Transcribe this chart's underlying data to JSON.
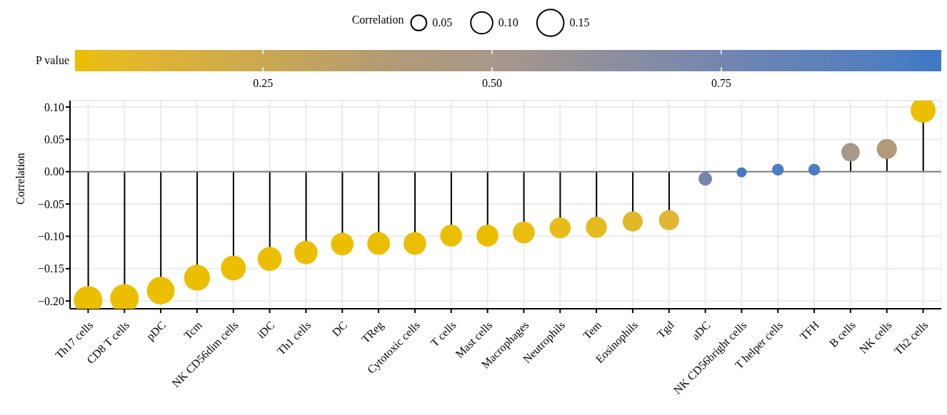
{
  "chart_data": {
    "type": "lollipop",
    "ylabel": "Correlation",
    "legend_title": "Correlation",
    "clabel": "P value",
    "categories": [
      "Th17 cells",
      "CD8 T cells",
      "pDC",
      "Tcm",
      "NK CD56dim cells",
      "iDC",
      "Th1 cells",
      "DC",
      "TReg",
      "Cytotoxic cells",
      "T cells",
      "Mast cells",
      "Macrophages",
      "Neutrophils",
      "Tem",
      "Eosinophils",
      "Tgd",
      "aDC",
      "NK CD56bright cells",
      "T helper cells",
      "TFH",
      "B cells",
      "NK cells",
      "Th2 cells"
    ],
    "values": [
      -0.199,
      -0.196,
      -0.184,
      -0.164,
      -0.149,
      -0.135,
      -0.125,
      -0.112,
      -0.111,
      -0.111,
      -0.099,
      -0.099,
      -0.094,
      -0.087,
      -0.086,
      -0.077,
      -0.075,
      -0.011,
      -0.001,
      0.003,
      0.003,
      0.03,
      0.035,
      0.095
    ],
    "sizes": [
      0.17,
      0.17,
      0.16,
      0.14,
      0.13,
      0.12,
      0.115,
      0.107,
      0.107,
      0.107,
      0.1,
      0.1,
      0.1,
      0.092,
      0.092,
      0.084,
      0.084,
      0.038,
      0.021,
      0.029,
      0.029,
      0.071,
      0.084,
      0.13
    ],
    "size_legend": [
      {
        "value": 0.05,
        "label": "0.05"
      },
      {
        "value": 0.1,
        "label": "0.10"
      },
      {
        "value": 0.15,
        "label": "0.15"
      }
    ],
    "cvalues": [
      0.05,
      0.05,
      0.05,
      0.05,
      0.05,
      0.05,
      0.05,
      0.05,
      0.05,
      0.05,
      0.05,
      0.05,
      0.06,
      0.07,
      0.08,
      0.1,
      0.12,
      0.75,
      0.97,
      0.95,
      0.95,
      0.5,
      0.4,
      0.05
    ],
    "colors": [
      "#ecbe00",
      "#ecbe00",
      "#ecbe00",
      "#ecbe00",
      "#ecbe00",
      "#ecbe00",
      "#ecbe00",
      "#ecbe00",
      "#ecbe00",
      "#ecbe00",
      "#ecbe00",
      "#ecbe00",
      "#eabd10",
      "#e8bc18",
      "#e6bb20",
      "#e3b828",
      "#e0b530",
      "#7486b0",
      "#4179c4",
      "#4a7dc2",
      "#4a7dc2",
      "#a8988a",
      "#b09a78",
      "#ecbe00"
    ],
    "clim": [
      0.045,
      0.99
    ],
    "cticks": [
      {
        "value": 0.25,
        "label": "0.25"
      },
      {
        "value": 0.5,
        "label": "0.50"
      },
      {
        "value": 0.75,
        "label": "0.75"
      }
    ],
    "ylim": [
      -0.212,
      0.11
    ],
    "yticks": [
      {
        "value": -0.2,
        "label": "−0.20"
      },
      {
        "value": -0.15,
        "label": "−0.15"
      },
      {
        "value": -0.1,
        "label": "−0.10"
      },
      {
        "value": -0.05,
        "label": "−0.05"
      },
      {
        "value": 0,
        "label": "0.00"
      },
      {
        "value": 0.05,
        "label": "0.05"
      },
      {
        "value": 0.1,
        "label": "0.10"
      }
    ],
    "ref_lines": [
      {
        "axis": "y",
        "value": 0,
        "color": "#7f7f7f"
      }
    ],
    "grid": true
  }
}
